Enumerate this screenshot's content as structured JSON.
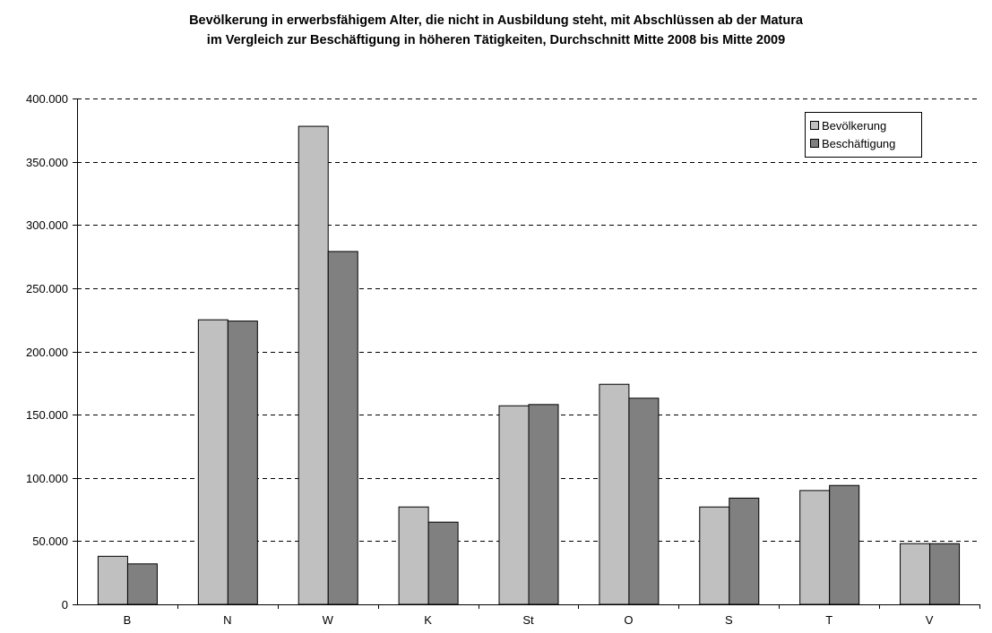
{
  "chart_data": {
    "type": "bar",
    "title": [
      "Bevölkerung in erwerbsfähigem Alter, die nicht in Ausbildung steht, mit Abschlüssen ab der Matura",
      "im Vergleich zur Beschäftigung in höheren Tätigkeiten, Durchschnitt Mitte 2008 bis Mitte 2009"
    ],
    "categories": [
      "B",
      "N",
      "W",
      "K",
      "St",
      "O",
      "S",
      "T",
      "V"
    ],
    "series": [
      {
        "name": "Bevölkerung",
        "color": "#c0c0c0",
        "values": [
          38000,
          225000,
          378000,
          77000,
          157000,
          174000,
          77000,
          90000,
          48000
        ]
      },
      {
        "name": "Beschäftigung",
        "color": "#808080",
        "values": [
          32000,
          224000,
          279000,
          65000,
          158000,
          163000,
          84000,
          94000,
          48000
        ]
      }
    ],
    "ylim": [
      0,
      400000
    ],
    "yticks": [
      0,
      50000,
      100000,
      150000,
      200000,
      250000,
      300000,
      350000,
      400000
    ],
    "ytick_labels": [
      "0",
      "50.000",
      "100.000",
      "150.000",
      "200.000",
      "250.000",
      "300.000",
      "350.000",
      "400.000"
    ],
    "grid": "horizontal-dashed",
    "legend": "top-right"
  }
}
